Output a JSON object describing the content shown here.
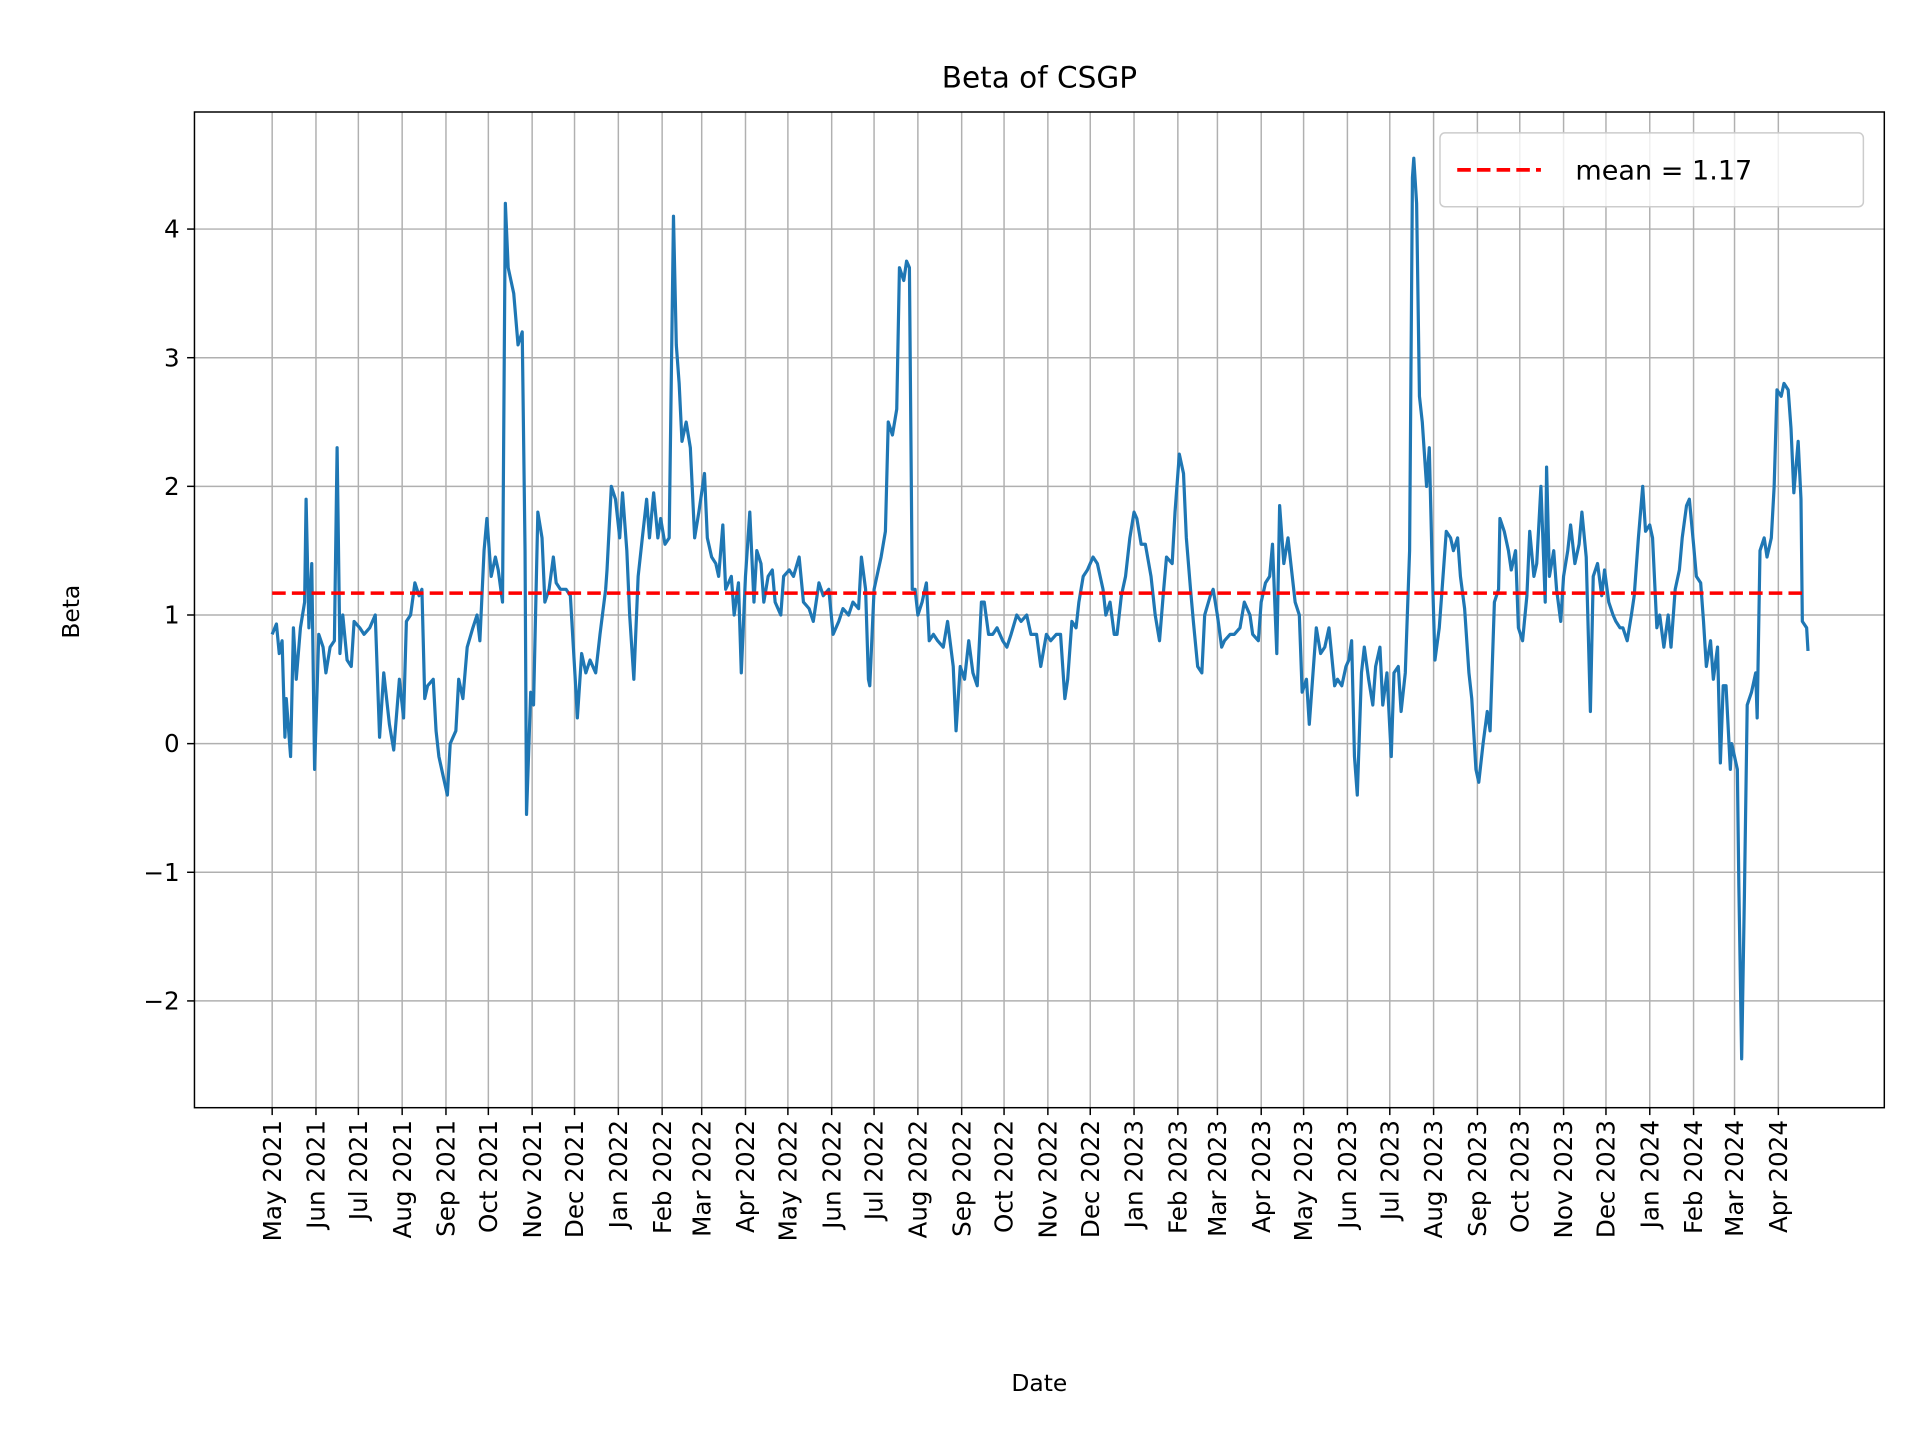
{
  "chart_data": {
    "type": "line",
    "title": "Beta of CSGP",
    "xlabel": "Date",
    "ylabel": "Beta",
    "xlim": [
      "2021-03-07",
      "2024-06-15"
    ],
    "ylim": [
      -2.83,
      4.91
    ],
    "grid": true,
    "legend_position": "top-right",
    "yticks": [
      -2,
      -1,
      0,
      1,
      2,
      3,
      4
    ],
    "ytick_labels": [
      "−2",
      "−1",
      "0",
      "1",
      "2",
      "3",
      "4"
    ],
    "xticks": [
      "2021-05-01",
      "2021-06-01",
      "2021-07-01",
      "2021-08-01",
      "2021-09-01",
      "2021-10-01",
      "2021-11-01",
      "2021-12-01",
      "2022-01-01",
      "2022-02-01",
      "2022-03-01",
      "2022-04-01",
      "2022-05-01",
      "2022-06-01",
      "2022-07-01",
      "2022-08-01",
      "2022-09-01",
      "2022-10-01",
      "2022-11-01",
      "2022-12-01",
      "2023-01-01",
      "2023-02-01",
      "2023-03-01",
      "2023-04-01",
      "2023-05-01",
      "2023-06-01",
      "2023-07-01",
      "2023-08-01",
      "2023-09-01",
      "2023-10-01",
      "2023-11-01",
      "2023-12-01",
      "2024-01-01",
      "2024-02-01",
      "2024-03-01",
      "2024-04-01"
    ],
    "xtick_labels": [
      "May 2021",
      "Jun 2021",
      "Jul 2021",
      "Aug 2021",
      "Sep 2021",
      "Oct 2021",
      "Nov 2021",
      "Dec 2021",
      "Jan 2022",
      "Feb 2022",
      "Mar 2022",
      "Apr 2022",
      "May 2022",
      "Jun 2022",
      "Jul 2022",
      "Aug 2022",
      "Sep 2022",
      "Oct 2022",
      "Nov 2022",
      "Dec 2022",
      "Jan 2023",
      "Feb 2023",
      "Mar 2023",
      "Apr 2023",
      "May 2023",
      "Jun 2023",
      "Jul 2023",
      "Aug 2023",
      "Sep 2023",
      "Oct 2023",
      "Nov 2023",
      "Dec 2023",
      "Jan 2024",
      "Feb 2024",
      "Mar 2024",
      "Apr 2024"
    ],
    "series": [
      {
        "color": "#1f77b4",
        "x": [
          "2021-05-01",
          "2021-05-04",
          "2021-05-06",
          "2021-05-08",
          "2021-05-10",
          "2021-05-11",
          "2021-05-14",
          "2021-05-16",
          "2021-05-18",
          "2021-05-21",
          "2021-05-24",
          "2021-05-25",
          "2021-05-27",
          "2021-05-29",
          "2021-05-31",
          "2021-06-03",
          "2021-06-06",
          "2021-06-08",
          "2021-06-11",
          "2021-06-14",
          "2021-06-16",
          "2021-06-18",
          "2021-06-20",
          "2021-06-23",
          "2021-06-26",
          "2021-06-28",
          "2021-07-02",
          "2021-07-05",
          "2021-07-09",
          "2021-07-13",
          "2021-07-16",
          "2021-07-19",
          "2021-07-23",
          "2021-07-26",
          "2021-07-30",
          "2021-08-02",
          "2021-08-04",
          "2021-08-07",
          "2021-08-10",
          "2021-08-13",
          "2021-08-15",
          "2021-08-17",
          "2021-08-19",
          "2021-08-23",
          "2021-08-25",
          "2021-08-27",
          "2021-08-30",
          "2021-09-02",
          "2021-09-04",
          "2021-09-08",
          "2021-09-10",
          "2021-09-13",
          "2021-09-16",
          "2021-09-20",
          "2021-09-23",
          "2021-09-25",
          "2021-09-28",
          "2021-09-30",
          "2021-10-03",
          "2021-10-06",
          "2021-10-08",
          "2021-10-11",
          "2021-10-13",
          "2021-10-15",
          "2021-10-19",
          "2021-10-22",
          "2021-10-25",
          "2021-10-27",
          "2021-10-28",
          "2021-10-31",
          "2021-11-02",
          "2021-11-05",
          "2021-11-08",
          "2021-11-10",
          "2021-11-13",
          "2021-11-16",
          "2021-11-18",
          "2021-11-21",
          "2021-11-25",
          "2021-11-28",
          "2021-12-02",
          "2021-12-03",
          "2021-12-06",
          "2021-12-09",
          "2021-12-12",
          "2021-12-16",
          "2021-12-19",
          "2021-12-23",
          "2021-12-24",
          "2021-12-27",
          "2021-12-30",
          "2022-01-02",
          "2022-01-04",
          "2022-01-07",
          "2022-01-09",
          "2022-01-12",
          "2022-01-15",
          "2022-01-18",
          "2022-01-21",
          "2022-01-23",
          "2022-01-26",
          "2022-01-29",
          "2022-01-31",
          "2022-02-03",
          "2022-02-06",
          "2022-02-09",
          "2022-02-11",
          "2022-02-13",
          "2022-02-15",
          "2022-02-18",
          "2022-02-21",
          "2022-02-24",
          "2022-02-27",
          "2022-03-03",
          "2022-03-05",
          "2022-03-08",
          "2022-03-11",
          "2022-03-13",
          "2022-03-16",
          "2022-03-18",
          "2022-03-22",
          "2022-03-24",
          "2022-03-27",
          "2022-03-29",
          "2022-04-01",
          "2022-04-04",
          "2022-04-07",
          "2022-04-09",
          "2022-04-12",
          "2022-04-14",
          "2022-04-17",
          "2022-04-20",
          "2022-04-22",
          "2022-04-26",
          "2022-04-28",
          "2022-05-02",
          "2022-05-05",
          "2022-05-09",
          "2022-05-12",
          "2022-05-16",
          "2022-05-19",
          "2022-05-23",
          "2022-05-26",
          "2022-05-30",
          "2022-06-02",
          "2022-06-06",
          "2022-06-09",
          "2022-06-13",
          "2022-06-16",
          "2022-06-20",
          "2022-06-22",
          "2022-06-25",
          "2022-06-27",
          "2022-06-28",
          "2022-07-01",
          "2022-07-04",
          "2022-07-06",
          "2022-07-09",
          "2022-07-11",
          "2022-07-14",
          "2022-07-17",
          "2022-07-19",
          "2022-07-22",
          "2022-07-24",
          "2022-07-26",
          "2022-07-28",
          "2022-07-30",
          "2022-08-01",
          "2022-08-04",
          "2022-08-07",
          "2022-08-09",
          "2022-08-12",
          "2022-08-15",
          "2022-08-19",
          "2022-08-22",
          "2022-08-26",
          "2022-08-28",
          "2022-08-31",
          "2022-09-03",
          "2022-09-06",
          "2022-09-09",
          "2022-09-12",
          "2022-09-15",
          "2022-09-17",
          "2022-09-20",
          "2022-09-23",
          "2022-09-26",
          "2022-09-30",
          "2022-10-03",
          "2022-10-06",
          "2022-10-10",
          "2022-10-13",
          "2022-10-17",
          "2022-10-20",
          "2022-10-24",
          "2022-10-27",
          "2022-10-31",
          "2022-11-03",
          "2022-11-07",
          "2022-11-10",
          "2022-11-13",
          "2022-11-15",
          "2022-11-18",
          "2022-11-21",
          "2022-11-23",
          "2022-11-26",
          "2022-11-29",
          "2022-12-03",
          "2022-12-06",
          "2022-12-10",
          "2022-12-12",
          "2022-12-15",
          "2022-12-18",
          "2022-12-20",
          "2022-12-23",
          "2022-12-26",
          "2022-12-29",
          "2023-01-01",
          "2023-01-03",
          "2023-01-06",
          "2023-01-09",
          "2023-01-13",
          "2023-01-16",
          "2023-01-19",
          "2023-01-22",
          "2023-01-24",
          "2023-01-28",
          "2023-01-30",
          "2023-02-02",
          "2023-02-05",
          "2023-02-07",
          "2023-02-10",
          "2023-02-12",
          "2023-02-15",
          "2023-02-18",
          "2023-02-20",
          "2023-02-24",
          "2023-02-26",
          "2023-03-01",
          "2023-03-04",
          "2023-03-06",
          "2023-03-10",
          "2023-03-13",
          "2023-03-17",
          "2023-03-20",
          "2023-03-24",
          "2023-03-26",
          "2023-03-30",
          "2023-04-01",
          "2023-04-04",
          "2023-04-07",
          "2023-04-09",
          "2023-04-12",
          "2023-04-14",
          "2023-04-17",
          "2023-04-20",
          "2023-04-22",
          "2023-04-25",
          "2023-04-28",
          "2023-04-30",
          "2023-05-03",
          "2023-05-05",
          "2023-05-08",
          "2023-05-10",
          "2023-05-13",
          "2023-05-16",
          "2023-05-19",
          "2023-05-23",
          "2023-05-25",
          "2023-05-28",
          "2023-05-31",
          "2023-06-02",
          "2023-06-04",
          "2023-06-06",
          "2023-06-08",
          "2023-06-11",
          "2023-06-13",
          "2023-06-16",
          "2023-06-19",
          "2023-06-21",
          "2023-06-24",
          "2023-06-26",
          "2023-06-29",
          "2023-07-02",
          "2023-07-04",
          "2023-07-07",
          "2023-07-09",
          "2023-07-12",
          "2023-07-15",
          "2023-07-17",
          "2023-07-18",
          "2023-07-20",
          "2023-07-22",
          "2023-07-24",
          "2023-07-27",
          "2023-07-29",
          "2023-07-31",
          "2023-08-02",
          "2023-08-05",
          "2023-08-07",
          "2023-08-10",
          "2023-08-13",
          "2023-08-15",
          "2023-08-18",
          "2023-08-20",
          "2023-08-23",
          "2023-08-26",
          "2023-08-28",
          "2023-08-31",
          "2023-09-02",
          "2023-09-05",
          "2023-09-08",
          "2023-09-10",
          "2023-09-13",
          "2023-09-16",
          "2023-09-17",
          "2023-09-20",
          "2023-09-23",
          "2023-09-25",
          "2023-09-28",
          "2023-09-30",
          "2023-10-03",
          "2023-10-06",
          "2023-10-08",
          "2023-10-11",
          "2023-10-13",
          "2023-10-16",
          "2023-10-19",
          "2023-10-20",
          "2023-10-22",
          "2023-10-25",
          "2023-10-27",
          "2023-10-30",
          "2023-11-01",
          "2023-11-04",
          "2023-11-06",
          "2023-11-09",
          "2023-11-12",
          "2023-11-14",
          "2023-11-17",
          "2023-11-20",
          "2023-11-22",
          "2023-11-25",
          "2023-11-28",
          "2023-11-30",
          "2023-12-03",
          "2023-12-06",
          "2023-12-08",
          "2023-12-11",
          "2023-12-13",
          "2023-12-16",
          "2023-12-19",
          "2023-12-21",
          "2023-12-24",
          "2023-12-27",
          "2023-12-29",
          "2024-01-01",
          "2024-01-03",
          "2024-01-06",
          "2024-01-08",
          "2024-01-11",
          "2024-01-14",
          "2024-01-16",
          "2024-01-19",
          "2024-01-22",
          "2024-01-24",
          "2024-01-27",
          "2024-01-29",
          "2024-02-01",
          "2024-02-03",
          "2024-02-06",
          "2024-02-08",
          "2024-02-10",
          "2024-02-13",
          "2024-02-15",
          "2024-02-18",
          "2024-02-20",
          "2024-02-22",
          "2024-02-24",
          "2024-02-27",
          "2024-02-28",
          "2024-03-03",
          "2024-03-04",
          "2024-03-06",
          "2024-03-08",
          "2024-03-10",
          "2024-03-13",
          "2024-03-16",
          "2024-03-17",
          "2024-03-19",
          "2024-03-22",
          "2024-03-24",
          "2024-03-27",
          "2024-03-29",
          "2024-03-31",
          "2024-04-03",
          "2024-04-05",
          "2024-04-08",
          "2024-04-10",
          "2024-04-12",
          "2024-04-15",
          "2024-04-17",
          "2024-04-18",
          "2024-04-21",
          "2024-04-22"
        ],
        "y": [
          0.85,
          0.93,
          0.7,
          0.8,
          0.05,
          0.35,
          -0.1,
          0.9,
          0.5,
          0.9,
          1.1,
          1.9,
          0.9,
          1.4,
          -0.2,
          0.85,
          0.75,
          0.55,
          0.75,
          0.8,
          2.3,
          0.7,
          1.0,
          0.65,
          0.6,
          0.95,
          0.9,
          0.85,
          0.9,
          1.0,
          0.05,
          0.55,
          0.15,
          -0.05,
          0.5,
          0.2,
          0.95,
          1.0,
          1.25,
          1.15,
          1.2,
          0.35,
          0.45,
          0.5,
          0.1,
          -0.1,
          -0.25,
          -0.4,
          0.0,
          0.1,
          0.5,
          0.35,
          0.75,
          0.9,
          1.0,
          0.8,
          1.5,
          1.75,
          1.3,
          1.45,
          1.35,
          1.1,
          4.2,
          3.7,
          3.5,
          3.1,
          3.2,
          1.5,
          -0.55,
          0.4,
          0.3,
          1.8,
          1.6,
          1.1,
          1.2,
          1.45,
          1.25,
          1.2,
          1.2,
          1.15,
          0.4,
          0.2,
          0.7,
          0.55,
          0.65,
          0.55,
          0.85,
          1.2,
          1.35,
          2.0,
          1.9,
          1.6,
          1.95,
          1.5,
          1.0,
          0.5,
          1.3,
          1.6,
          1.9,
          1.6,
          1.95,
          1.6,
          1.75,
          1.55,
          1.6,
          4.1,
          3.1,
          2.8,
          2.35,
          2.5,
          2.3,
          1.6,
          1.8,
          2.1,
          1.6,
          1.45,
          1.4,
          1.3,
          1.7,
          1.2,
          1.3,
          1.0,
          1.25,
          0.55,
          1.3,
          1.8,
          1.1,
          1.5,
          1.4,
          1.1,
          1.3,
          1.35,
          1.1,
          1.0,
          1.3,
          1.35,
          1.3,
          1.45,
          1.1,
          1.05,
          0.95,
          1.25,
          1.15,
          1.2,
          0.85,
          0.95,
          1.05,
          1.0,
          1.1,
          1.05,
          1.45,
          1.2,
          0.5,
          0.45,
          1.2,
          1.35,
          1.45,
          1.65,
          2.5,
          2.4,
          2.6,
          3.7,
          3.6,
          3.75,
          3.7,
          1.2,
          1.2,
          1.0,
          1.1,
          1.25,
          0.8,
          0.85,
          0.8,
          0.75,
          0.95,
          0.6,
          0.1,
          0.6,
          0.5,
          0.8,
          0.55,
          0.45,
          1.1,
          1.1,
          0.85,
          0.85,
          0.9,
          0.8,
          0.75,
          0.85,
          1.0,
          0.95,
          1.0,
          0.85,
          0.85,
          0.6,
          0.85,
          0.8,
          0.85,
          0.85,
          0.35,
          0.5,
          0.95,
          0.9,
          1.1,
          1.3,
          1.35,
          1.45,
          1.4,
          1.2,
          1.0,
          1.1,
          0.85,
          0.85,
          1.15,
          1.3,
          1.6,
          1.8,
          1.75,
          1.55,
          1.55,
          1.3,
          1.0,
          0.8,
          1.2,
          1.45,
          1.4,
          1.8,
          2.25,
          2.1,
          1.6,
          1.2,
          0.95,
          0.6,
          0.55,
          1.0,
          1.15,
          1.2,
          1.0,
          0.75,
          0.8,
          0.85,
          0.85,
          0.9,
          1.1,
          1.0,
          0.85,
          0.8,
          1.1,
          1.25,
          1.3,
          1.55,
          0.7,
          1.85,
          1.4,
          1.6,
          1.4,
          1.1,
          1.0,
          0.4,
          0.5,
          0.15,
          0.6,
          0.9,
          0.7,
          0.75,
          0.9,
          0.45,
          0.5,
          0.45,
          0.6,
          0.65,
          0.8,
          -0.1,
          -0.4,
          0.55,
          0.75,
          0.5,
          0.3,
          0.6,
          0.75,
          0.3,
          0.55,
          -0.1,
          0.55,
          0.6,
          0.25,
          0.55,
          1.5,
          4.4,
          4.55,
          4.2,
          2.7,
          2.5,
          2.0,
          2.3,
          1.4,
          0.65,
          0.9,
          1.2,
          1.65,
          1.6,
          1.5,
          1.6,
          1.3,
          1.05,
          0.55,
          0.35,
          -0.2,
          -0.3,
          0.0,
          0.25,
          0.1,
          1.1,
          1.2,
          1.75,
          1.65,
          1.5,
          1.35,
          1.5,
          0.9,
          0.8,
          1.15,
          1.65,
          1.3,
          1.4,
          2.0,
          1.1,
          2.15,
          1.3,
          1.5,
          1.2,
          0.95,
          1.3,
          1.5,
          1.7,
          1.4,
          1.55,
          1.8,
          1.45,
          0.25,
          1.3,
          1.4,
          1.15,
          1.35,
          1.1,
          1.0,
          0.95,
          0.9,
          0.9,
          0.8,
          1.0,
          1.15,
          1.6,
          2.0,
          1.65,
          1.7,
          1.6,
          0.9,
          1.0,
          0.75,
          1.0,
          0.75,
          1.2,
          1.35,
          1.6,
          1.85,
          1.9,
          1.55,
          1.3,
          1.25,
          0.95,
          0.6,
          0.8,
          0.5,
          0.75,
          -0.15,
          0.45,
          0.45,
          -0.2,
          0.0,
          -0.2,
          -1.1,
          -2.45,
          -1.2,
          0.3,
          0.4,
          0.55,
          0.2,
          1.5,
          1.6,
          1.45,
          1.6,
          2.0,
          2.75,
          2.7,
          2.8,
          2.75,
          2.45,
          1.95,
          2.35,
          1.9,
          0.95,
          0.9,
          0.72
        ]
      }
    ],
    "mean_line": {
      "value": 1.17,
      "color": "#ff0000",
      "label": "mean = 1.17"
    }
  }
}
